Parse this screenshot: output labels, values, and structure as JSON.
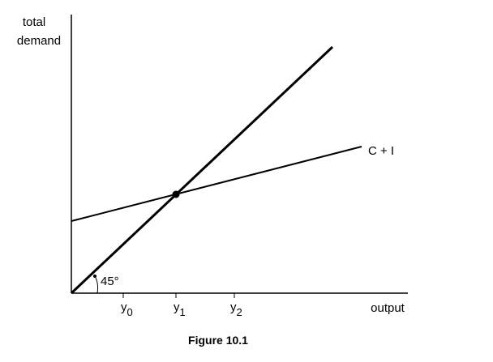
{
  "axes": {
    "y_label": [
      "total",
      "demand"
    ],
    "x_label": "output"
  },
  "lines": {
    "supply_label": "C + I",
    "angle_label": "45°"
  },
  "x_ticks": [
    {
      "base": "y",
      "sub": "0"
    },
    {
      "base": "y",
      "sub": "1"
    },
    {
      "base": "y",
      "sub": "2"
    }
  ],
  "caption": "Figure 10.1"
}
